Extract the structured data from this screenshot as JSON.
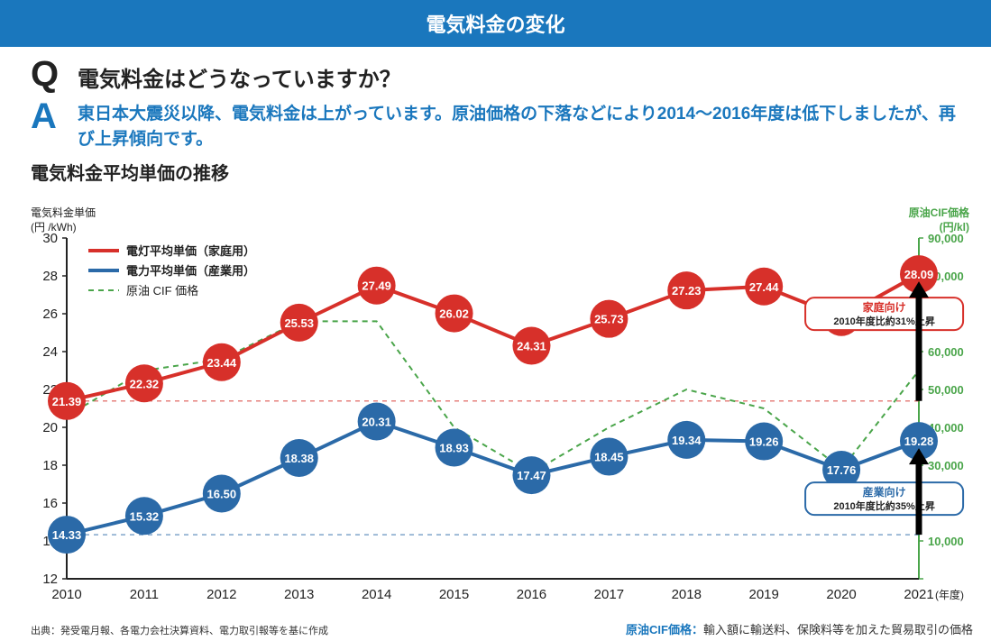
{
  "banner": "電気料金の変化",
  "qa": {
    "q_mark": "Q",
    "q_text": "電気料金はどうなっていますか？",
    "a_mark": "A",
    "a_text": "東日本大震災以降、電気料金は上がっています。原油価格の下落などにより2014〜2016年度は低下しましたが、再び上昇傾向です。"
  },
  "chart": {
    "type": "line",
    "title": "電気料金平均単価の推移",
    "left_axis": {
      "title1": "電気料金単価",
      "title2": "(円 /kWh)",
      "min": 12,
      "max": 30,
      "step": 2,
      "color": "#222"
    },
    "right_axis": {
      "title1": "原油CIF価格",
      "title2": "(円/kl)",
      "min": 0,
      "max": 90000,
      "step": 10000,
      "color": "#4aa54a"
    },
    "x_label_suffix": "(年度)",
    "categories": [
      "2010",
      "2011",
      "2012",
      "2013",
      "2014",
      "2015",
      "2016",
      "2017",
      "2018",
      "2019",
      "2020",
      "2021"
    ],
    "series": {
      "residential": {
        "label": "電灯平均単価（家庭用）",
        "color": "#d7302a",
        "values": [
          21.39,
          22.32,
          23.44,
          25.53,
          27.49,
          26.02,
          24.31,
          25.73,
          27.23,
          27.44,
          25.82,
          28.09
        ],
        "line_width": 4,
        "marker_r": 21,
        "label_color": "#ffffff"
      },
      "industrial": {
        "label": "電力平均単価（産業用）",
        "color": "#2b6aa8",
        "values": [
          14.33,
          15.32,
          16.5,
          18.38,
          20.31,
          18.93,
          17.47,
          18.45,
          19.34,
          19.26,
          17.76,
          19.28
        ],
        "line_width": 4,
        "marker_r": 21,
        "label_color": "#ffffff"
      },
      "cif": {
        "label": "原油 CIF 価格",
        "color": "#4aa54a",
        "values_right": [
          43000,
          55000,
          58000,
          68000,
          68000,
          40000,
          28000,
          40000,
          50000,
          45000,
          29000,
          55000
        ],
        "line_width": 2,
        "dash": "6,5"
      }
    },
    "baselines": {
      "residential": {
        "value": 21.39,
        "color": "#d7302a",
        "dash": "5,5"
      },
      "industrial": {
        "value": 14.33,
        "color": "#2b6aa8",
        "dash": "5,5"
      }
    },
    "callouts": {
      "residential": {
        "title": "家庭向け",
        "sub": "2010年度比約31%上昇",
        "border": "#d7302a"
      },
      "industrial": {
        "title": "産業向け",
        "sub": "2010年度比約35%上昇",
        "border": "#2b6aa8"
      }
    },
    "background": "#ffffff",
    "axis_color": "#222222",
    "tick_fontsize": 15,
    "legend_fontsize": 13
  },
  "footnotes": {
    "left": "出典：発受電月報、各電力会社決算資料、電力取引報等を基に作成",
    "right_label": "原油CIF価格：",
    "right_text": "輸入額に輸送料、保険料等を加えた貿易取引の価格"
  }
}
